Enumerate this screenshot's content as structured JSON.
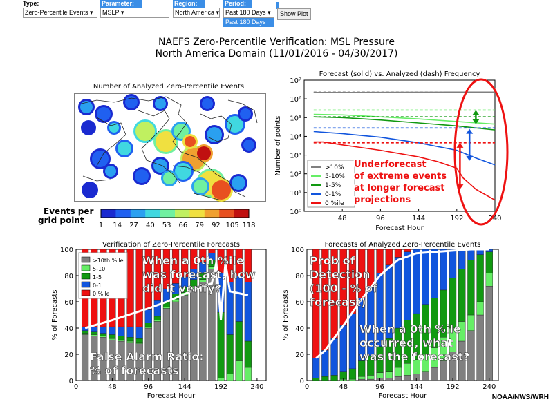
{
  "controls": {
    "type": {
      "label": "Type:",
      "value": "Zero-Percentile Events"
    },
    "parameter": {
      "label": "Parameter:",
      "value": "MSLP"
    },
    "region": {
      "label": "Region:",
      "value": "North America"
    },
    "period": {
      "label": "Period:",
      "value": "Past 180 Days",
      "open_option": "Past 180 Days"
    },
    "show_plot": "Show Plot"
  },
  "title_line1": "NAEFS Zero-Percentile Verification: MSL Pressure",
  "title_line2": "North America Domain  (11/01/2016 - 04/30/2017)",
  "credit": "NOAA/NWS/WRH",
  "colors": {
    "gt10": "#808080",
    "p5_10": "#66ee66",
    "p1_5": "#119911",
    "p0_1": "#1155dd",
    "p0": "#ee1111",
    "annotation_red": "#ee1111"
  },
  "chart_data": [
    {
      "id": "map",
      "type": "heatmap",
      "title": "Number of Analyzed Zero-Percentile Events",
      "colorbar_label": "Events per grid point",
      "colorbar_ticks": [
        1,
        14,
        27,
        40,
        53,
        66,
        79,
        92,
        105,
        118
      ],
      "colorbar_colors": [
        "#1a2ad0",
        "#2060f0",
        "#2aa0f0",
        "#40d8e0",
        "#70f0a0",
        "#c0f060",
        "#f0e040",
        "#f0a030",
        "#e85020",
        "#c01010"
      ]
    },
    {
      "id": "freq",
      "type": "line",
      "title": "Forecast (solid) vs. Analyzed (dash) Frequency",
      "xlabel": "Forecast Hour",
      "ylabel": "Number of points",
      "log_y": true,
      "xlim": [
        0,
        240
      ],
      "ylim": [
        1,
        10000000
      ],
      "xticks": [
        48,
        96,
        144,
        192,
        240
      ],
      "yticks": [
        1,
        10,
        100,
        1000,
        10000,
        100000,
        1000000,
        10000000
      ],
      "ytick_labels": [
        "10⁰",
        "10¹",
        "10²",
        "10³",
        "10⁴",
        "10⁵",
        "10⁶",
        "10⁷"
      ],
      "legend": [
        "&gt;10%",
        "5-10%",
        "1-5%",
        "0-1%",
        "0 %ile"
      ],
      "series": [
        {
          "name": ">10%",
          "color": "#808080",
          "style": "solid",
          "x": [
            12,
            60,
            120,
            180,
            240
          ],
          "y": [
            2200000,
            2200000,
            2250000,
            2300000,
            2300000
          ]
        },
        {
          "name": ">10%",
          "color": "#808080",
          "style": "dash",
          "x": [
            12,
            240
          ],
          "y": [
            2300000,
            2300000
          ]
        },
        {
          "name": "5-10%",
          "color": "#66ee66",
          "style": "solid",
          "x": [
            12,
            48,
            96,
            144,
            192,
            240
          ],
          "y": [
            150000,
            140000,
            110000,
            85000,
            62000,
            45000
          ]
        },
        {
          "name": "5-10%",
          "color": "#66ee66",
          "style": "dash",
          "x": [
            12,
            240
          ],
          "y": [
            250000,
            250000
          ]
        },
        {
          "name": "1-5%",
          "color": "#119911",
          "style": "solid",
          "x": [
            12,
            48,
            96,
            144,
            192,
            240
          ],
          "y": [
            110000,
            100000,
            75000,
            52000,
            36000,
            22000
          ]
        },
        {
          "name": "1-5%",
          "color": "#119911",
          "style": "dash",
          "x": [
            12,
            240
          ],
          "y": [
            110000,
            110000
          ]
        },
        {
          "name": "0-1%",
          "color": "#1155dd",
          "style": "solid",
          "x": [
            12,
            48,
            96,
            144,
            192,
            216,
            240
          ],
          "y": [
            18000,
            14000,
            9000,
            4500,
            1800,
            700,
            300
          ]
        },
        {
          "name": "0-1%",
          "color": "#1155dd",
          "style": "dash",
          "x": [
            12,
            240
          ],
          "y": [
            28000,
            28000
          ]
        },
        {
          "name": "0 %ile",
          "color": "#ee1111",
          "style": "solid",
          "x": [
            12,
            24,
            48,
            96,
            144,
            168,
            192,
            200,
            216,
            240
          ],
          "y": [
            5000,
            5000,
            3500,
            1800,
            800,
            450,
            200,
            60,
            15,
            4
          ]
        },
        {
          "name": "0 %ile",
          "color": "#ee1111",
          "style": "dash",
          "x": [
            12,
            240
          ],
          "y": [
            4500,
            4500
          ]
        }
      ],
      "annotation": "Underforecast of extreme events at longer forecast projections"
    },
    {
      "id": "ver",
      "type": "bar",
      "stacked": true,
      "title": "Verification of Zero-Percentile Forecasts",
      "xlabel": "Forecast Hour",
      "ylabel": "% of Forecasts",
      "xlim": [
        0,
        252
      ],
      "ylim": [
        0,
        100
      ],
      "xticks": [
        0,
        48,
        96,
        144,
        192,
        240
      ],
      "yticks": [
        0,
        20,
        40,
        60,
        80,
        100
      ],
      "legend": [
        "&gt;10th %ile",
        "5-10",
        "1-5",
        "0-1",
        "0 %ile"
      ],
      "x": [
        12,
        24,
        36,
        48,
        60,
        72,
        84,
        96,
        108,
        120,
        132,
        144,
        156,
        168,
        180,
        192,
        204,
        216,
        228
      ],
      "series": [
        {
          "name": ">10th %ile",
          "values": [
            35,
            34,
            33,
            31,
            30,
            29,
            28,
            40,
            45,
            55,
            60,
            65,
            70,
            75,
            85,
            0,
            0,
            0,
            0
          ]
        },
        {
          "name": "5-10",
          "values": [
            1,
            1,
            1,
            1,
            1,
            1,
            1,
            1,
            1,
            1,
            2,
            2,
            2,
            2,
            2,
            2,
            5,
            15,
            10
          ]
        },
        {
          "name": "1-5",
          "values": [
            2,
            2,
            2,
            3,
            3,
            3,
            3,
            3,
            3,
            4,
            4,
            4,
            5,
            5,
            5,
            50,
            30,
            30,
            20
          ]
        },
        {
          "name": "0-1",
          "values": [
            3,
            4,
            5,
            6,
            7,
            8,
            9,
            10,
            12,
            10,
            8,
            8,
            8,
            8,
            5,
            30,
            40,
            35,
            45
          ]
        },
        {
          "name": "0 %ile",
          "values": [
            59,
            59,
            59,
            59,
            59,
            59,
            59,
            46,
            39,
            30,
            26,
            21,
            15,
            10,
            3,
            18,
            25,
            20,
            25
          ]
        }
      ],
      "annotations": [
        "When a 0th %ile was forecast, how did it verify?",
        "False Alarm Ratio: % of forecasts"
      ]
    },
    {
      "id": "pod",
      "type": "bar",
      "stacked": true,
      "title": "Forecasts of Analyzed Zero-Percentile Events",
      "xlabel": "Forecast Hour",
      "ylabel": "% of Forecasts",
      "xlim": [
        0,
        252
      ],
      "ylim": [
        0,
        100
      ],
      "xticks": [
        0,
        48,
        96,
        144,
        192,
        240
      ],
      "yticks": [
        0,
        20,
        40,
        60,
        80,
        100
      ],
      "x": [
        12,
        24,
        36,
        48,
        60,
        72,
        84,
        96,
        108,
        120,
        132,
        144,
        156,
        168,
        180,
        192,
        204,
        216,
        228,
        240
      ],
      "series": [
        {
          "name": ">10th %ile",
          "values": [
            0,
            0,
            0,
            0,
            0,
            1,
            1,
            2,
            2,
            3,
            4,
            5,
            7,
            10,
            15,
            22,
            30,
            38,
            50,
            72
          ]
        },
        {
          "name": "5-10",
          "values": [
            0,
            0,
            0,
            1,
            1,
            2,
            3,
            4,
            5,
            7,
            9,
            11,
            13,
            15,
            18,
            18,
            15,
            12,
            10,
            10
          ]
        },
        {
          "name": "1-5",
          "values": [
            2,
            3,
            4,
            6,
            8,
            12,
            15,
            20,
            25,
            30,
            33,
            35,
            38,
            38,
            36,
            38,
            40,
            42,
            36,
            16
          ]
        },
        {
          "name": "0-1",
          "values": [
            15,
            20,
            28,
            35,
            42,
            48,
            52,
            56,
            56,
            54,
            52,
            49,
            42,
            37,
            31,
            22,
            15,
            8,
            4,
            2
          ]
        },
        {
          "name": "0 %ile",
          "values": [
            83,
            77,
            68,
            58,
            49,
            37,
            29,
            18,
            12,
            6,
            2,
            0,
            0,
            0,
            0,
            0,
            0,
            0,
            0,
            0
          ]
        }
      ],
      "annotations": [
        "Prob of Detection (100 - % of forecast)",
        "When a 0th %ile occurred, what was the forecast?"
      ]
    }
  ]
}
